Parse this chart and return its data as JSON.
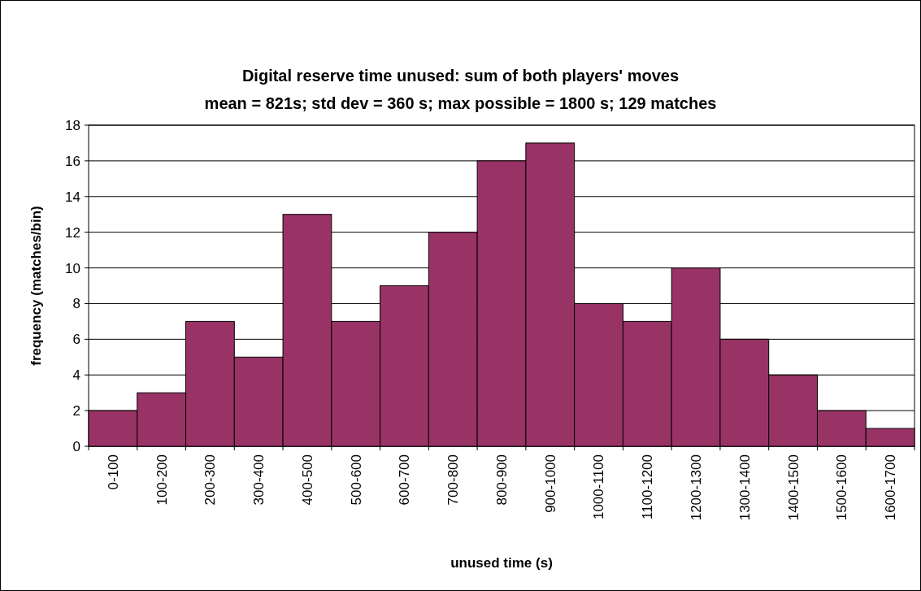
{
  "chart_data": {
    "type": "bar",
    "title": "Digital reserve time unused: sum of both players' moves",
    "subtitle": "mean = 821s; std dev = 360 s; max possible = 1800 s; 129 matches",
    "xlabel": "unused time (s)",
    "ylabel": "frequency (matches/bin)",
    "categories": [
      "0-100",
      "100-200",
      "200-300",
      "300-400",
      "400-500",
      "500-600",
      "600-700",
      "700-800",
      "800-900",
      "900-1000",
      "1000-1100",
      "1100-1200",
      "1200-1300",
      "1300-1400",
      "1400-1500",
      "1500-1600",
      "1600-1700"
    ],
    "values": [
      2,
      3,
      7,
      5,
      13,
      7,
      9,
      12,
      16,
      17,
      8,
      7,
      10,
      6,
      4,
      2,
      1
    ],
    "color": "#993366",
    "ylim": [
      0,
      18
    ],
    "yticks": [
      0,
      2,
      4,
      6,
      8,
      10,
      12,
      14,
      16,
      18
    ],
    "grid": "y"
  }
}
